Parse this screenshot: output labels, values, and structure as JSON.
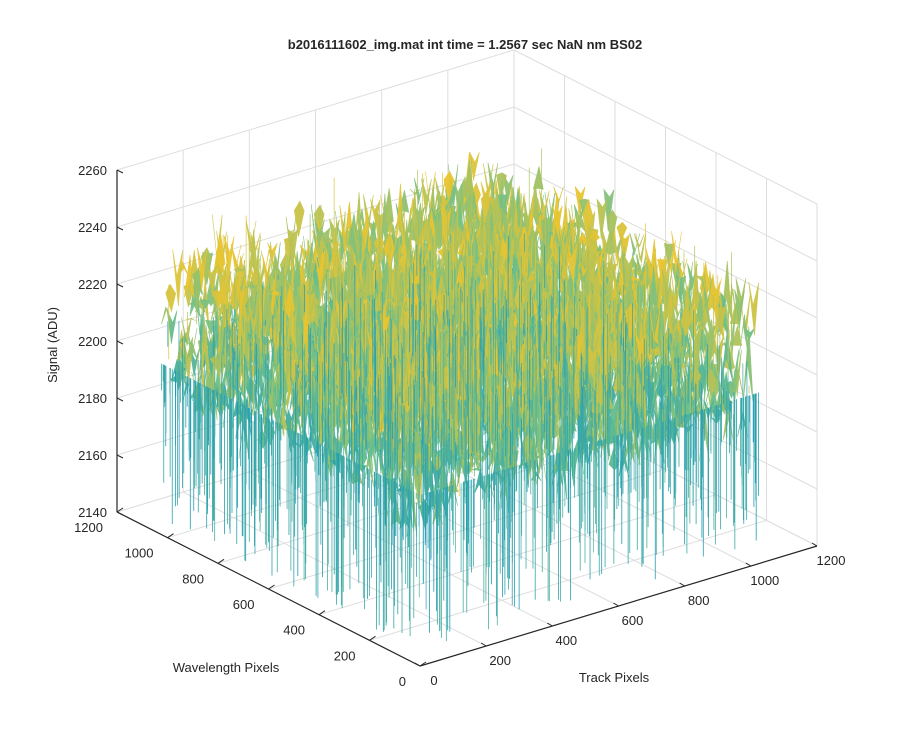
{
  "chart_data": {
    "type": "surface",
    "title": "b2016111602_img.mat int time = 1.2567 sec  NaN nm BS02",
    "xlabel": "Track Pixels",
    "ylabel": "Wavelength Pixels",
    "zlabel": "Signal (ADU)",
    "xlim": [
      0,
      1200
    ],
    "ylim": [
      0,
      1200
    ],
    "zlim": [
      2140,
      2260
    ],
    "xticks": [
      "0",
      "200",
      "400",
      "600",
      "800",
      "1000",
      "1200"
    ],
    "yticks": [
      "0",
      "200",
      "400",
      "600",
      "800",
      "1000",
      "1200"
    ],
    "zticks": [
      "2140",
      "2160",
      "2180",
      "2200",
      "2220",
      "2240",
      "2260"
    ],
    "grid": true,
    "colormap": "parula",
    "surface": {
      "track_range": [
        0,
        1024
      ],
      "wavelength_range": [
        0,
        1024
      ],
      "mean_signal": 2205,
      "noise_band": [
        2150,
        2250
      ],
      "description_values": {
        "typical_low": 2170,
        "typical_high": 2235
      }
    },
    "colors": {
      "low": "#1f9bb5",
      "mid": "#6cc08c",
      "high": "#e9c531",
      "axis": "#262626",
      "grid": "#dedede"
    }
  }
}
